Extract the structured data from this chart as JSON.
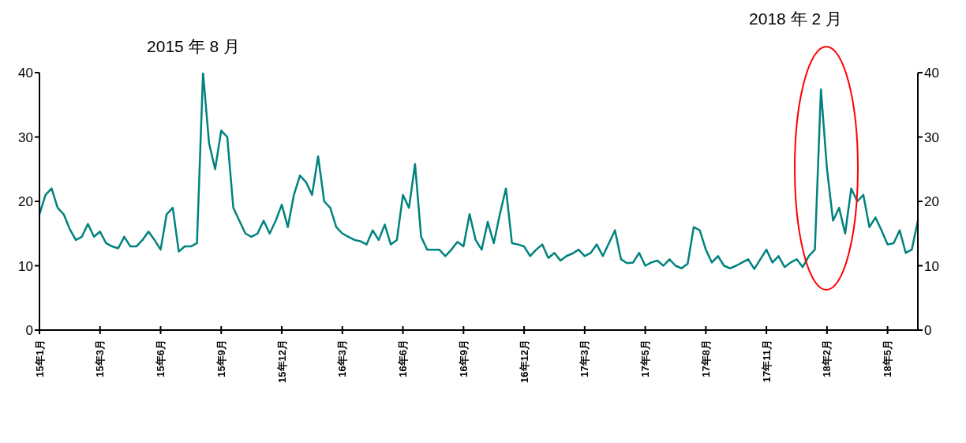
{
  "chart_data": {
    "type": "line",
    "annotations": [
      "2015 年 8 月",
      "2018 年 2 月"
    ],
    "categories": [
      "15年1月",
      null,
      null,
      null,
      null,
      null,
      null,
      null,
      null,
      null,
      "15年3月",
      null,
      null,
      null,
      null,
      null,
      null,
      null,
      null,
      null,
      "15年6月",
      null,
      null,
      null,
      null,
      null,
      null,
      null,
      null,
      null,
      "15年9月",
      null,
      null,
      null,
      null,
      null,
      null,
      null,
      null,
      null,
      "15年12月",
      null,
      null,
      null,
      null,
      null,
      null,
      null,
      null,
      null,
      "16年3月",
      null,
      null,
      null,
      null,
      null,
      null,
      null,
      null,
      null,
      "16年6月",
      null,
      null,
      null,
      null,
      null,
      null,
      null,
      null,
      null,
      "16年9月",
      null,
      null,
      null,
      null,
      null,
      null,
      null,
      null,
      null,
      "16年12月",
      null,
      null,
      null,
      null,
      null,
      null,
      null,
      null,
      null,
      "17年3月",
      null,
      null,
      null,
      null,
      null,
      null,
      null,
      null,
      null,
      "17年5月",
      null,
      null,
      null,
      null,
      null,
      null,
      null,
      null,
      null,
      "17年8月",
      null,
      null,
      null,
      null,
      null,
      null,
      null,
      null,
      null,
      "17年11月",
      null,
      null,
      null,
      null,
      null,
      null,
      null,
      null,
      null,
      "18年2月",
      null,
      null,
      null,
      null,
      null,
      null,
      null,
      null,
      null,
      "18年5月",
      null,
      null,
      null,
      null,
      null
    ],
    "series": [
      {
        "color": "#00827f",
        "values": [
          18,
          21,
          22,
          19,
          18,
          15.7,
          14,
          14.5,
          16.5,
          14.5,
          15.3,
          13.5,
          13,
          12.7,
          14.5,
          13,
          13,
          14,
          15.3,
          14,
          12.5,
          18,
          19,
          12.2,
          13,
          13,
          13.5,
          40,
          29,
          25,
          31,
          30,
          19,
          17,
          15,
          14.5,
          15,
          17,
          15,
          17,
          19.5,
          16,
          21,
          24,
          23,
          21,
          27,
          20,
          19,
          16,
          15,
          14.5,
          14,
          13.8,
          13.3,
          15.5,
          14,
          16.4,
          13.3,
          14,
          21,
          19,
          25.8,
          14.5,
          12.5,
          12.5,
          12.5,
          11.5,
          12.5,
          13.7,
          13,
          18,
          14,
          12.5,
          16.8,
          13.5,
          18,
          22,
          13.5,
          13.3,
          13,
          11.5,
          12.5,
          13.3,
          11.2,
          12,
          10.8,
          11.5,
          11.9,
          12.5,
          11.5,
          12,
          13.3,
          11.5,
          13.5,
          15.5,
          11,
          10.4,
          10.5,
          12,
          10,
          10.5,
          10.8,
          10,
          11,
          10,
          9.6,
          10.3,
          16,
          15.5,
          12.5,
          10.5,
          11.5,
          10,
          9.6,
          10,
          10.5,
          11,
          9.5,
          11,
          12.5,
          10.5,
          11.5,
          9.8,
          10.5,
          11,
          9.8,
          11.5,
          12.5,
          37.4,
          25,
          17,
          19,
          15,
          22,
          20,
          21,
          16,
          17.5,
          15.5,
          13.3,
          13.5,
          15.5,
          12,
          12.5,
          17
        ]
      }
    ],
    "ylim": [
      0,
      40
    ],
    "yticks": [
      0,
      10,
      20,
      30,
      40
    ],
    "y2lim": [
      0,
      40
    ],
    "y2ticks": [
      0,
      10,
      20,
      30,
      40
    ]
  }
}
